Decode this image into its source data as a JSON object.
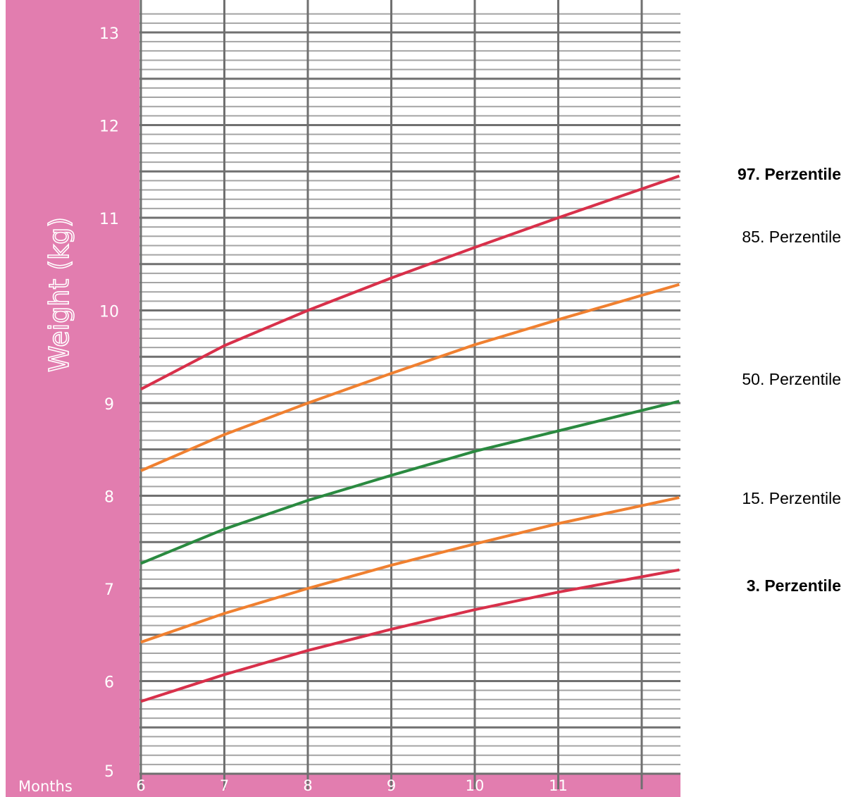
{
  "chart_data": {
    "type": "line",
    "ylabel": "Weight (kg)",
    "xlabel": "Months",
    "ylim": [
      5,
      13.2
    ],
    "xlim": [
      6,
      12.45
    ],
    "x_ticks": [
      "6",
      "7",
      "8",
      "9",
      "10",
      "11"
    ],
    "y_ticks": [
      "5",
      "6",
      "7",
      "8",
      "9",
      "10",
      "11",
      "12",
      "13"
    ],
    "minor_y_step": 0.1,
    "grid": true,
    "legend": "right",
    "x": [
      6,
      7,
      8,
      9,
      10,
      11,
      12.45
    ],
    "series": [
      {
        "name": "97. Perzentile",
        "bold": true,
        "color": "#d8304a",
        "values": [
          9.15,
          9.62,
          10.0,
          10.35,
          10.68,
          11.0,
          11.45
        ]
      },
      {
        "name": "85. Perzentile",
        "bold": false,
        "color": "#f08030",
        "values": [
          8.27,
          8.66,
          9.0,
          9.32,
          9.63,
          9.9,
          10.28
        ]
      },
      {
        "name": "50. Perzentile",
        "bold": false,
        "color": "#2a8a40",
        "values": [
          7.27,
          7.64,
          7.95,
          8.22,
          8.48,
          8.7,
          9.02
        ]
      },
      {
        "name": "15. Perzentile",
        "bold": false,
        "color": "#f08030",
        "values": [
          6.42,
          6.73,
          7.0,
          7.25,
          7.48,
          7.7,
          7.98
        ]
      },
      {
        "name": "3. Perzentile",
        "bold": true,
        "color": "#d8304a",
        "values": [
          5.78,
          6.07,
          6.33,
          6.56,
          6.77,
          6.96,
          7.2
        ]
      }
    ],
    "colors": {
      "panel": "#e27daf",
      "major_grid": "#707070",
      "minor_grid": "#a4a4a4",
      "tick_text": "#ffffff"
    }
  }
}
